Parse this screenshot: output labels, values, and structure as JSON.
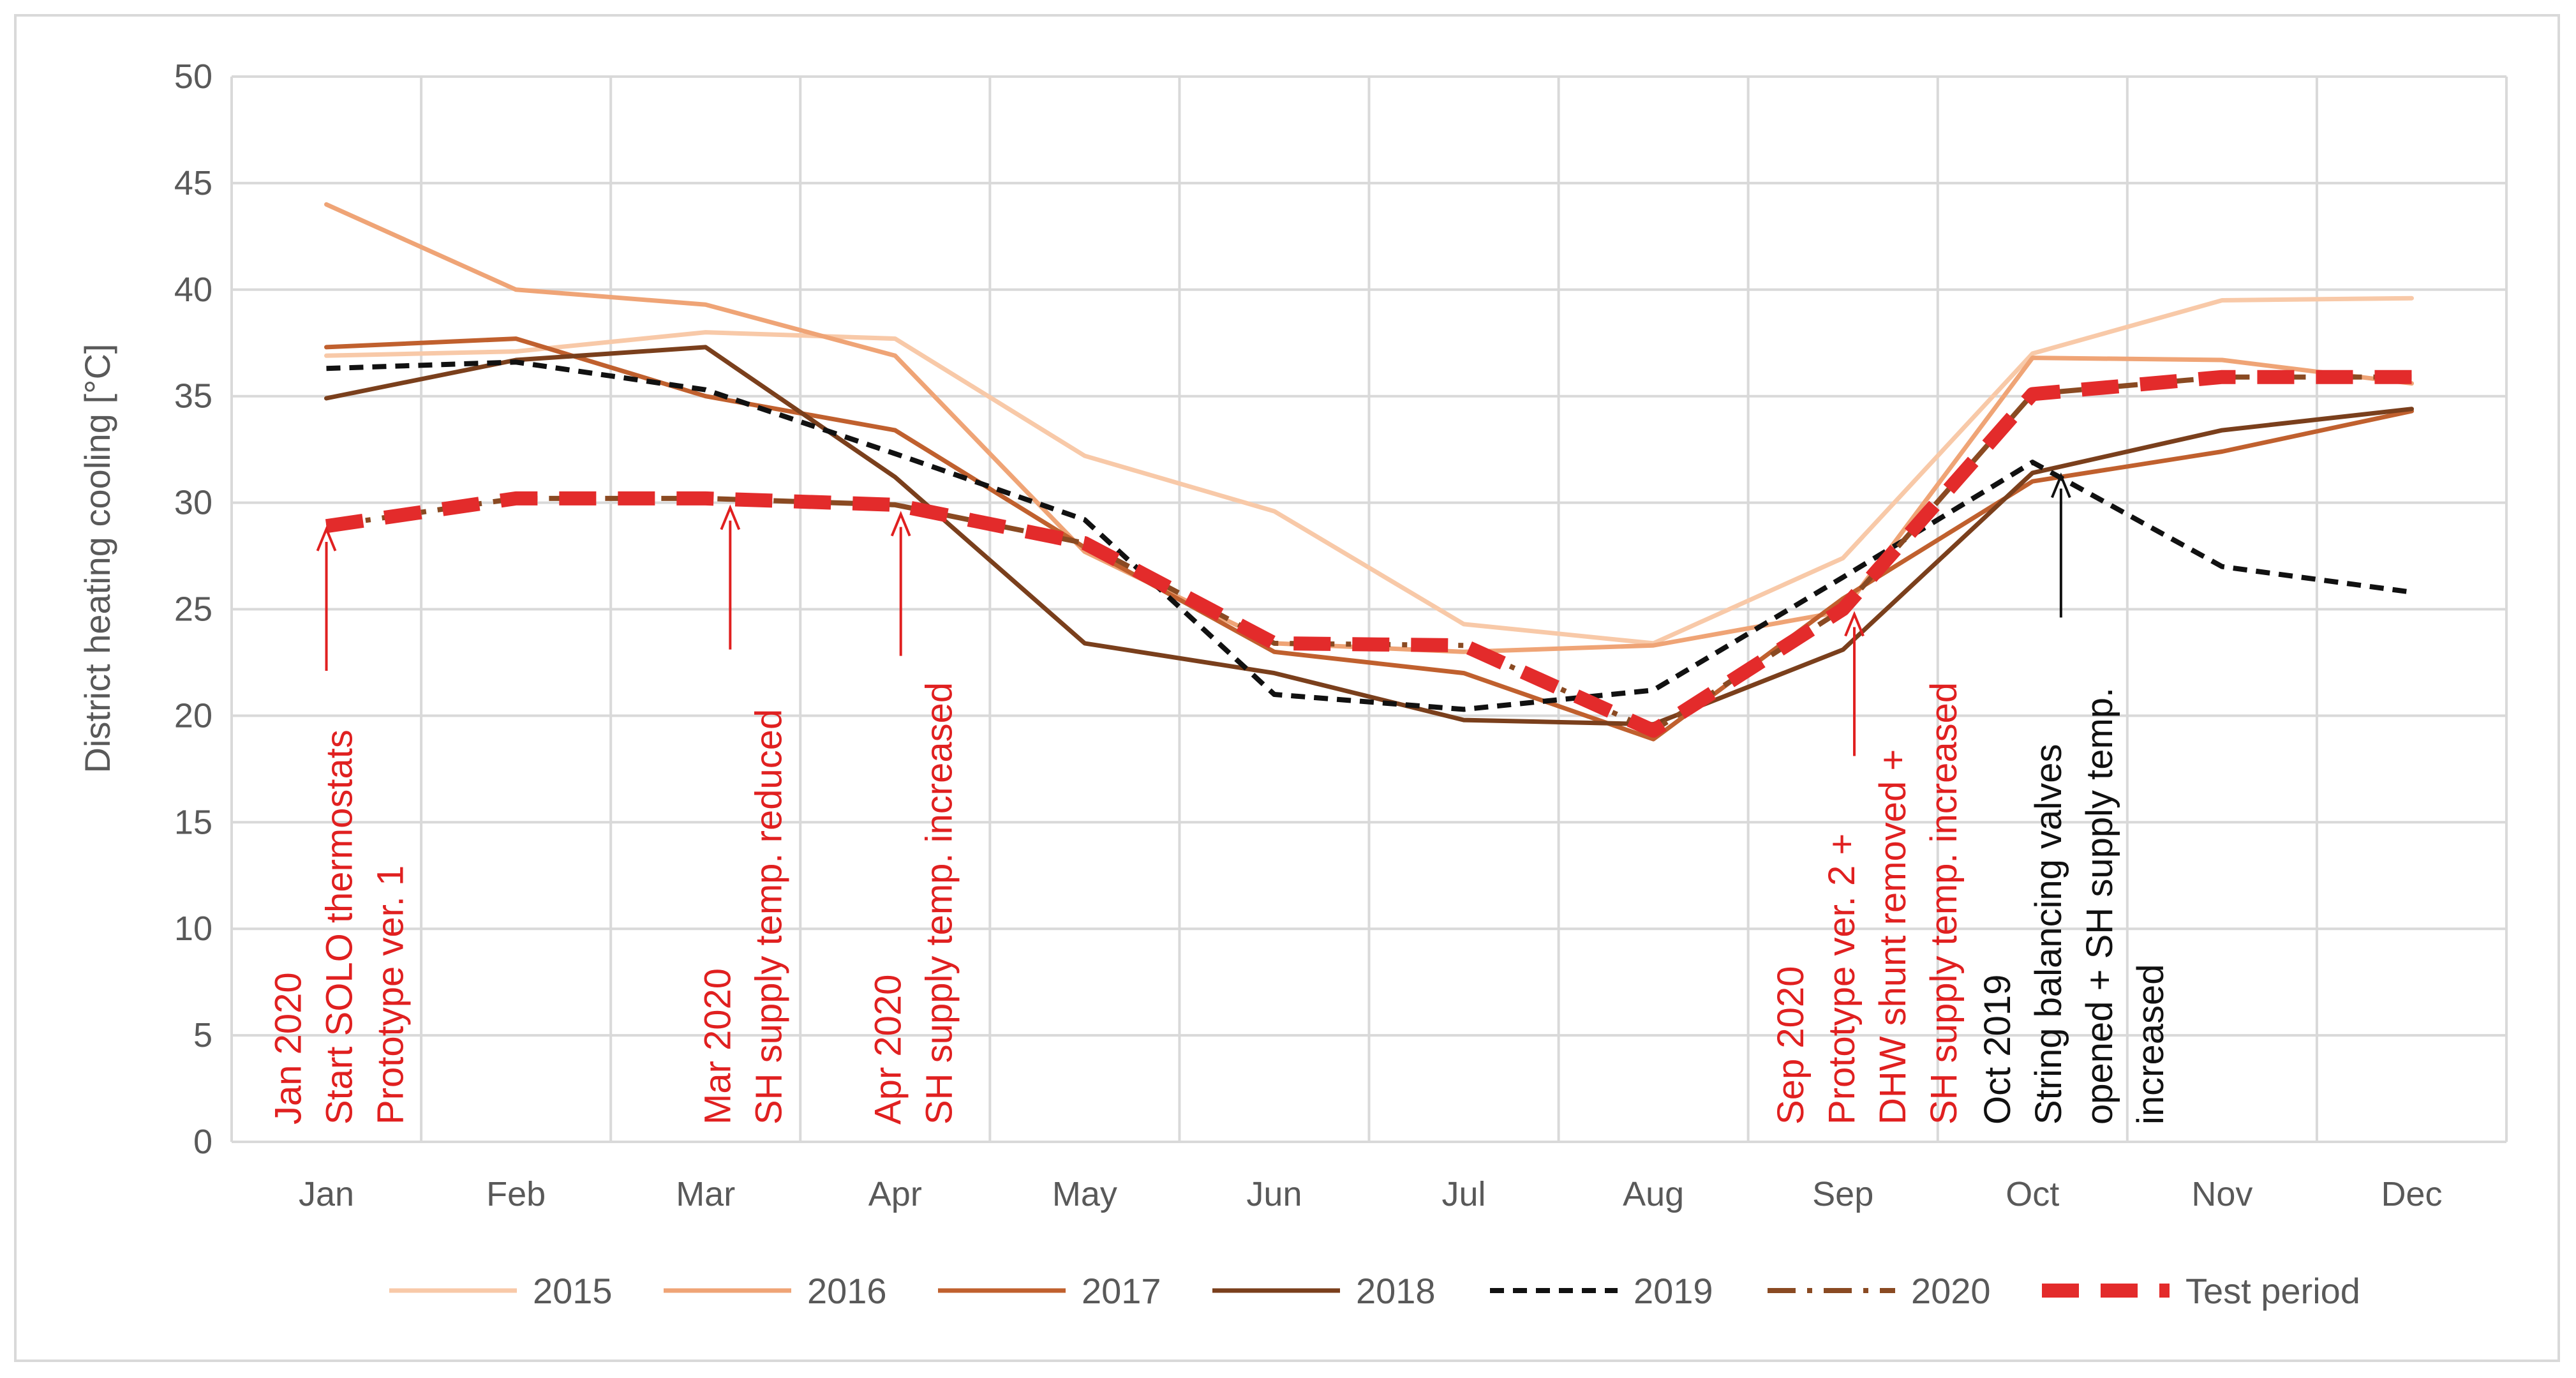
{
  "chart_data": {
    "type": "line",
    "title": "",
    "xlabel": "",
    "ylabel": "District heating cooling [°C]",
    "ylim": [
      0,
      50
    ],
    "yticks": [
      "0",
      "5",
      "10",
      "15",
      "20",
      "25",
      "30",
      "35",
      "40",
      "45",
      "50"
    ],
    "grid": true,
    "legend_position": "bottom",
    "categories": [
      "Jan",
      "Feb",
      "Mar",
      "Apr",
      "May",
      "Jun",
      "Jul",
      "Aug",
      "Sep",
      "Oct",
      "Nov",
      "Dec"
    ],
    "series": [
      {
        "name": "2015",
        "color": "#f8c9a8",
        "style": "solid",
        "values": [
          36.9,
          37.1,
          38.0,
          37.7,
          32.2,
          29.6,
          24.3,
          23.4,
          27.4,
          37.0,
          39.5,
          39.6
        ]
      },
      {
        "name": "2016",
        "color": "#efa476",
        "style": "solid",
        "values": [
          44.0,
          40.0,
          39.3,
          36.9,
          27.7,
          23.4,
          23.0,
          23.3,
          24.9,
          36.8,
          36.7,
          35.6
        ]
      },
      {
        "name": "2017",
        "color": "#c0602e",
        "style": "solid",
        "values": [
          37.3,
          37.7,
          35.0,
          33.4,
          27.9,
          23.0,
          22.0,
          18.9,
          25.5,
          31.0,
          32.4,
          34.3
        ]
      },
      {
        "name": "2018",
        "color": "#7a3f1c",
        "style": "solid",
        "values": [
          34.9,
          36.7,
          37.3,
          31.2,
          23.4,
          22.0,
          19.8,
          19.6,
          23.1,
          31.4,
          33.4,
          34.4
        ]
      },
      {
        "name": "2019",
        "color": "#111111",
        "style": "dash",
        "values": [
          36.3,
          36.6,
          35.3,
          32.3,
          29.2,
          21.0,
          20.3,
          21.2,
          26.5,
          31.9,
          27.0,
          25.8
        ]
      },
      {
        "name": "2020",
        "color": "#8a4a22",
        "style": "dashdot",
        "values": [
          28.9,
          30.2,
          30.2,
          29.9,
          28.1,
          23.4,
          23.3,
          19.3,
          25.0,
          35.1,
          35.9,
          35.9
        ]
      },
      {
        "name": "Test period",
        "color": "#e32b2b",
        "style": "thickdash",
        "values": [
          28.9,
          30.2,
          30.2,
          29.9,
          28.1,
          23.4,
          23.3,
          19.3,
          25.0,
          35.1,
          35.9,
          35.9
        ]
      }
    ],
    "annotations": [
      {
        "month_index": 0,
        "y_value": 29,
        "color": "#e02020",
        "lines": [
          "Jan 2020",
          "Start SOLO thermostats",
          "Prototype ver. 1"
        ]
      },
      {
        "month_index": 2.13,
        "y_value": 30,
        "color": "#e02020",
        "lines": [
          "Mar 2020",
          "SH supply temp. reduced"
        ]
      },
      {
        "month_index": 3.03,
        "y_value": 29.7,
        "color": "#e02020",
        "lines": [
          "Apr 2020",
          "SH supply temp. increased"
        ]
      },
      {
        "month_index": 8.06,
        "y_value": 25,
        "color": "#e02020",
        "lines": [
          "Sep 2020",
          "Prototype ver. 2 +",
          "DHW shunt removed +",
          "SH supply temp. increased"
        ]
      },
      {
        "month_index": 9.15,
        "y_value": 31.5,
        "color": "#111111",
        "lines": [
          "Oct 2019",
          "String balancing valves",
          "opened + SH supply temp.",
          "increased"
        ]
      }
    ]
  }
}
